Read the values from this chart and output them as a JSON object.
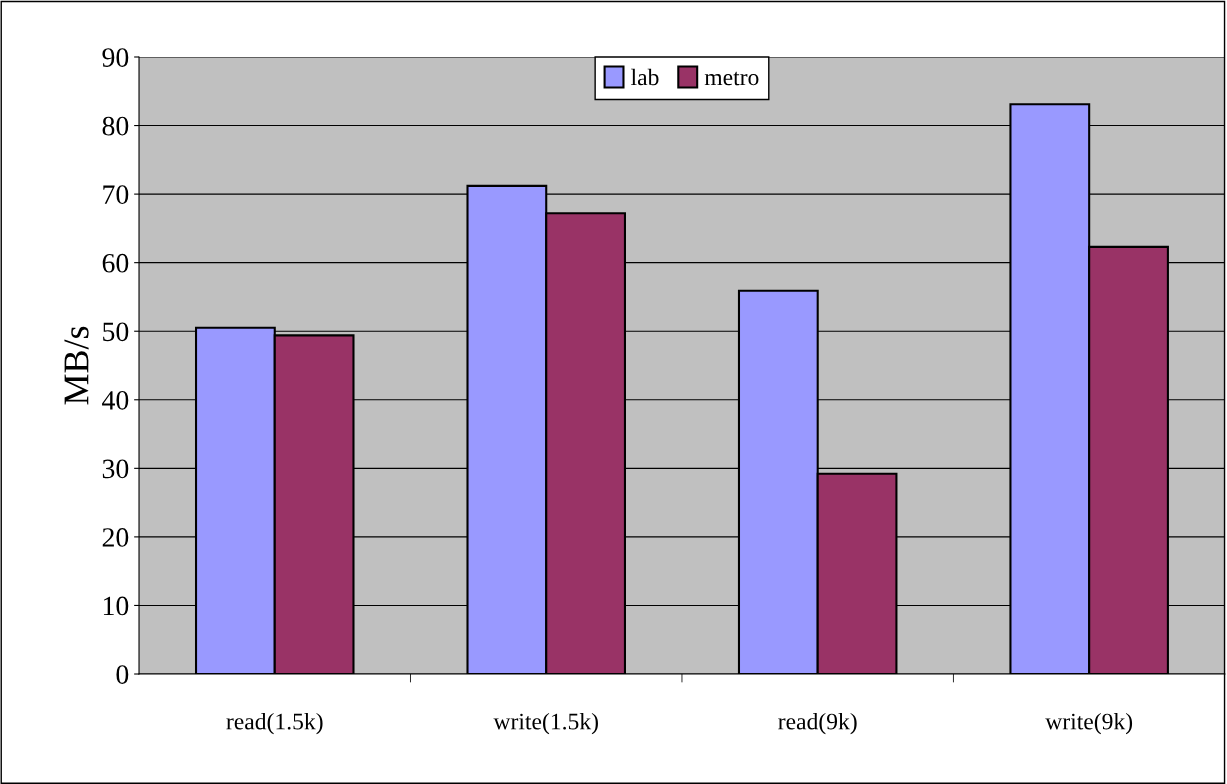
{
  "chart_data": {
    "type": "bar",
    "ylabel": "MB/s",
    "categories": [
      "read(1.5k)",
      "write(1.5k)",
      "read(9k)",
      "write(9k)"
    ],
    "series": [
      {
        "name": "lab",
        "color": "#9999ff",
        "values": [
          50.5,
          71.2,
          55.9,
          83.1
        ]
      },
      {
        "name": "metro",
        "color": "#993366",
        "values": [
          49.4,
          67.2,
          29.2,
          62.3
        ]
      }
    ],
    "ylim": [
      0,
      90
    ],
    "yticks": [
      0,
      10,
      20,
      30,
      40,
      50,
      60,
      70,
      80,
      90
    ],
    "grid": "y",
    "legend": "top"
  }
}
